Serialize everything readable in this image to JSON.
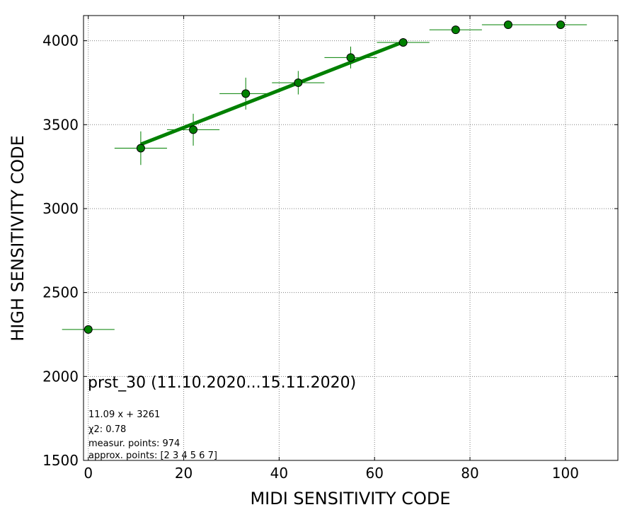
{
  "chart_data": {
    "type": "scatter",
    "title": "prst_30 (11.10.2020...15.11.2020)",
    "xlabel": "MIDI SENSITIVITY CODE",
    "ylabel": "HIGH SENSITIVITY CODE",
    "xlim": [
      -1,
      111
    ],
    "ylim": [
      1500,
      4150
    ],
    "xticks": [
      0,
      20,
      40,
      60,
      80,
      100
    ],
    "yticks": [
      1500,
      2000,
      2500,
      3000,
      3500,
      4000
    ],
    "grid": true,
    "colors": {
      "series": "#008000",
      "marker_edge": "#000000",
      "grid": "#808080"
    },
    "series": [
      {
        "type": "errorbar",
        "x": [
          0,
          11,
          22,
          33,
          44,
          55,
          66,
          77,
          88,
          99
        ],
        "y": [
          2280,
          3360,
          3470,
          3685,
          3750,
          3900,
          3990,
          4065,
          4095,
          4095
        ],
        "xerr": [
          5.5,
          5.5,
          5.5,
          5.5,
          5.5,
          5.5,
          5.5,
          5.5,
          5.5,
          5.5
        ],
        "yerr": [
          0,
          100,
          95,
          95,
          70,
          65,
          25,
          0,
          0,
          0
        ]
      },
      {
        "type": "fit-line",
        "x": [
          11,
          66
        ],
        "y": [
          3382.99,
          3992.94
        ]
      }
    ],
    "annotations": [
      "11.09 x + 3261",
      "χ2: 0.78",
      "measur. points: 974",
      "approx. points: [2 3 4 5 6 7]"
    ]
  }
}
